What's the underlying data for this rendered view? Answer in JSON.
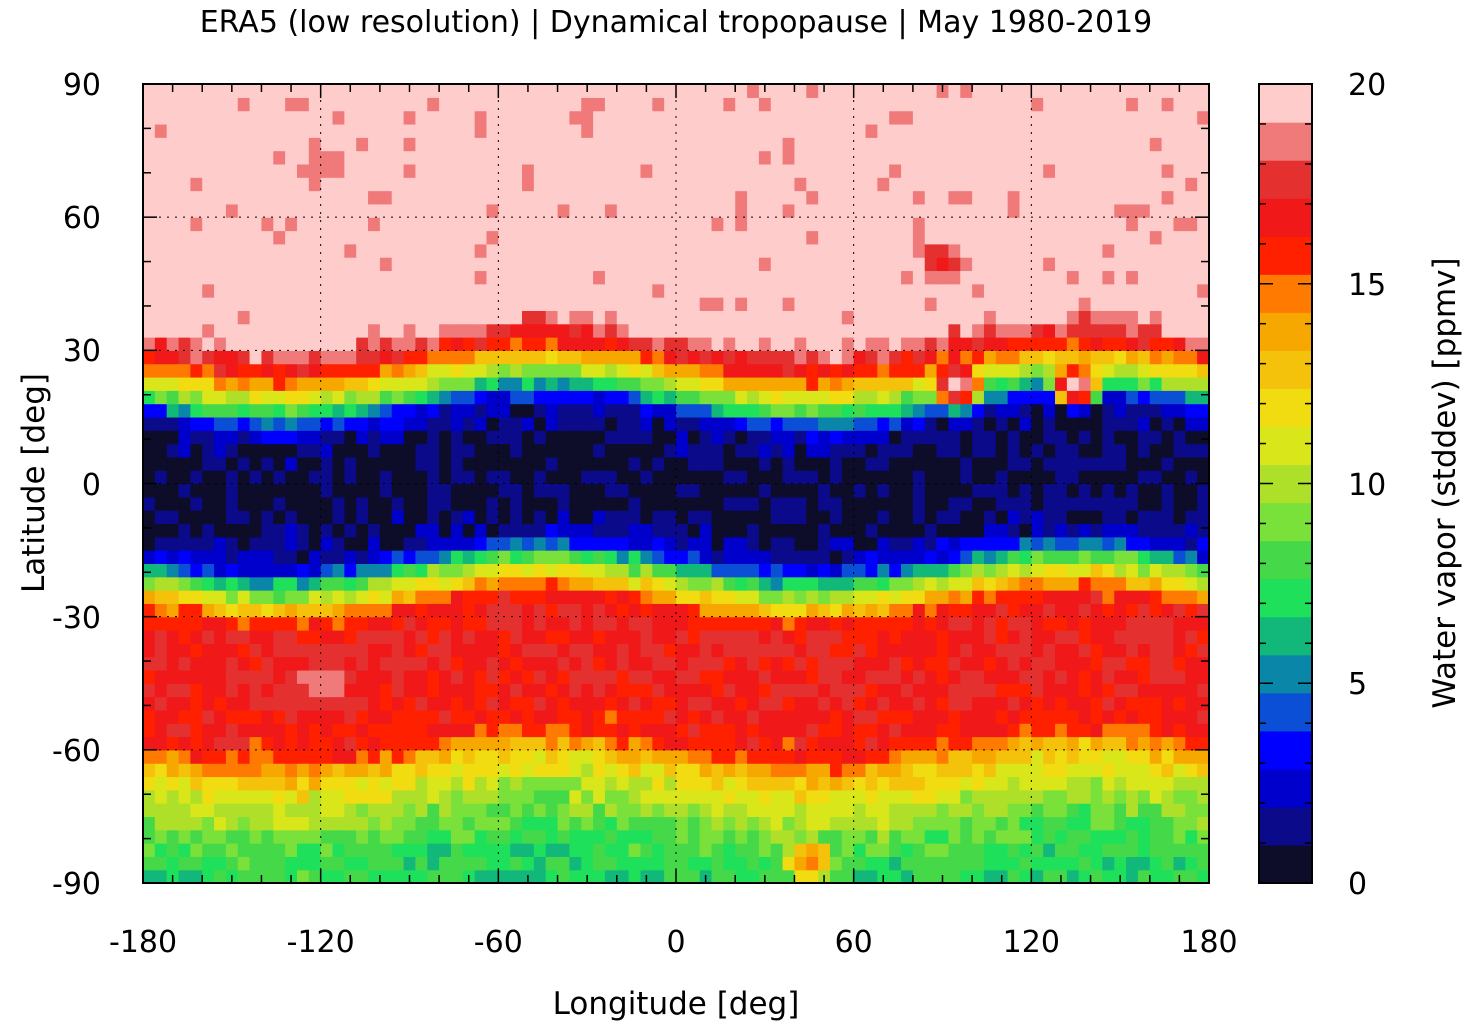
{
  "chart_data": {
    "type": "heatmap",
    "title": "ERA5 (low resolution) | Dynamical tropopause | May 1980-2019",
    "xlabel": "Longitude [deg]",
    "ylabel": "Latitude [deg]",
    "xlim": [
      -180,
      180
    ],
    "ylim": [
      -90,
      90
    ],
    "x_ticks": [
      "-180",
      "-120",
      "-60",
      "0",
      "60",
      "120",
      "180"
    ],
    "y_ticks": [
      "90",
      "60",
      "30",
      "0",
      "-30",
      "-60",
      "-90"
    ],
    "grid": true,
    "colorbar": {
      "label": "Water vapor (stddev) [ppmv]",
      "range": [
        0,
        20
      ],
      "ticks": [
        "20",
        "15",
        "10",
        "5",
        "0"
      ],
      "levels": 20,
      "colors": [
        "#0d0d2a",
        "#0a0a8a",
        "#0000cc",
        "#0000ff",
        "#0a4fd6",
        "#0a86a8",
        "#12b87a",
        "#1ee05a",
        "#45d94a",
        "#7ae03a",
        "#aee02a",
        "#d8e61a",
        "#f0dc10",
        "#f4c20a",
        "#f7a800",
        "#ff7a00",
        "#ff2000",
        "#f01818",
        "#e53030",
        "#f07a7a",
        "#ffcccc"
      ]
    },
    "zonal_mean_profile": {
      "lat": [
        -90,
        -80,
        -72,
        -65,
        -58,
        -45,
        -32,
        -28,
        -24,
        -20,
        -17,
        -14,
        -10,
        0,
        10,
        14,
        17,
        20,
        24,
        28,
        32,
        36,
        40,
        60,
        90
      ],
      "value": [
        7,
        8,
        10,
        12,
        16,
        17,
        17,
        16,
        12,
        8,
        4,
        2,
        1,
        0.5,
        1,
        2,
        4,
        8,
        12,
        16,
        18,
        20,
        20,
        20,
        20
      ]
    },
    "regional_anomalies": [
      {
        "lon": 90,
        "lat": 50,
        "value": 17
      },
      {
        "lon": -120,
        "lat": 72,
        "value": 18
      },
      {
        "lon": -30,
        "lat": 85,
        "value": 19
      },
      {
        "lon": 135,
        "lat": 22,
        "value": 20
      },
      {
        "lon": 95,
        "lat": 22,
        "value": 20
      },
      {
        "lon": -120,
        "lat": -45,
        "value": 19
      },
      {
        "lon": 45,
        "lat": -85,
        "value": 15
      }
    ]
  }
}
